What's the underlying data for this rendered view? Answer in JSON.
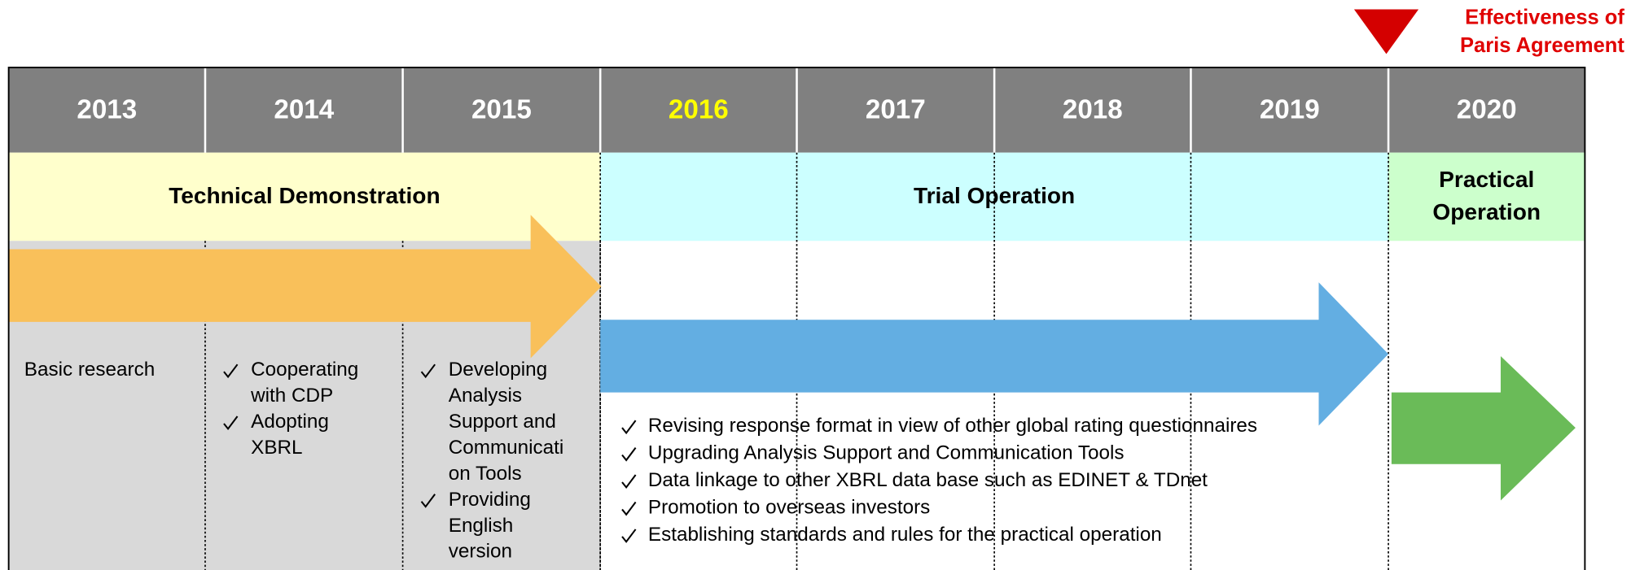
{
  "milestone": {
    "lines": [
      "Effectiveness of",
      "Paris Agreement"
    ]
  },
  "years": [
    "2013",
    "2014",
    "2015",
    "2016",
    "2017",
    "2018",
    "2019",
    "2020"
  ],
  "phases": [
    {
      "lines": [
        "Technical Demonstration"
      ]
    },
    {
      "lines": [
        "Trial Operation"
      ]
    },
    {
      "lines": [
        "Practical",
        "Operation"
      ]
    }
  ],
  "column_notes": [
    {
      "text": "Basic research"
    },
    {
      "checklist": [
        [
          "Cooperating",
          "with CDP"
        ],
        [
          "Adopting",
          "XBRL"
        ]
      ]
    },
    {
      "checklist": [
        [
          "Developing",
          "Analysis",
          "Support and",
          "Communicati",
          "on Tools"
        ],
        [
          "Providing",
          "English",
          "version"
        ]
      ]
    }
  ],
  "trial_checklist": [
    "Revising response format in view of other global rating questionnaires",
    "Upgrading Analysis Support and Communication Tools",
    "Data linkage to other XBRL data base such as EDINET & TDnet",
    "Promotion to overseas investors",
    "Establishing standards and rules for the practical operation"
  ]
}
